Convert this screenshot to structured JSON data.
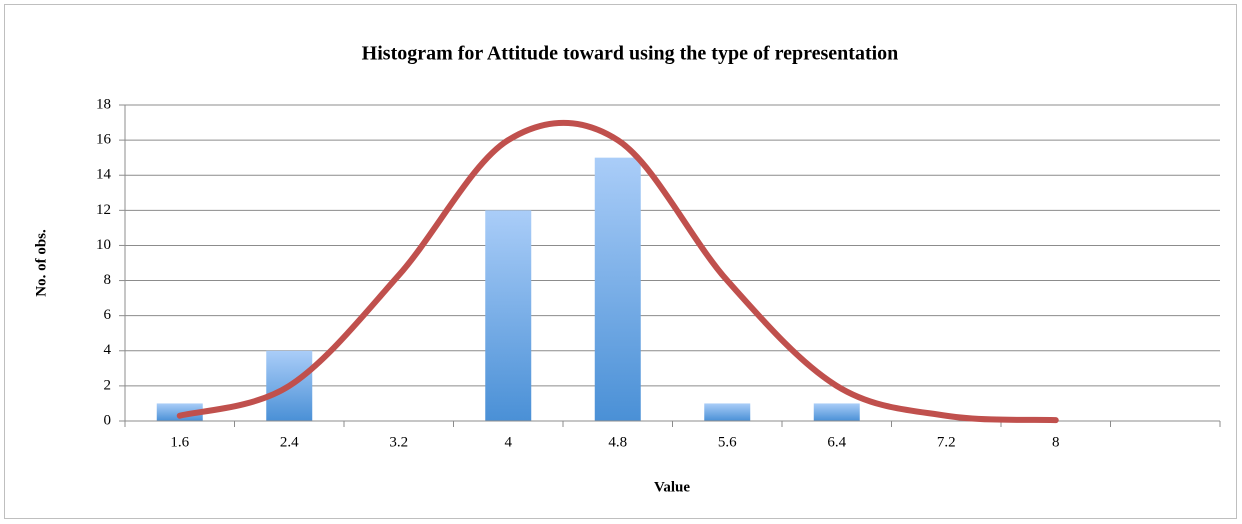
{
  "chart_data": {
    "type": "bar",
    "title": "Histogram for Attitude toward using the type of representation",
    "x_label": "Value",
    "y_label": "No. of obs.",
    "categories": [
      "1.6",
      "2.4",
      "3.2",
      "4",
      "4.8",
      "5.6",
      "6.4",
      "7.2",
      "8",
      null
    ],
    "values": [
      1,
      4,
      0,
      12,
      15,
      1,
      1,
      0,
      0,
      0
    ],
    "color": "#5b9bd5",
    "line": {
      "values": [
        0.3,
        2,
        8.3,
        16,
        16,
        8,
        2,
        0.3,
        0.05,
        null
      ],
      "color": "#c0504d"
    },
    "ylim": [
      0,
      18
    ],
    "yticks": [
      0,
      2,
      4,
      6,
      8,
      10,
      12,
      14,
      16,
      18
    ],
    "grid": true
  }
}
